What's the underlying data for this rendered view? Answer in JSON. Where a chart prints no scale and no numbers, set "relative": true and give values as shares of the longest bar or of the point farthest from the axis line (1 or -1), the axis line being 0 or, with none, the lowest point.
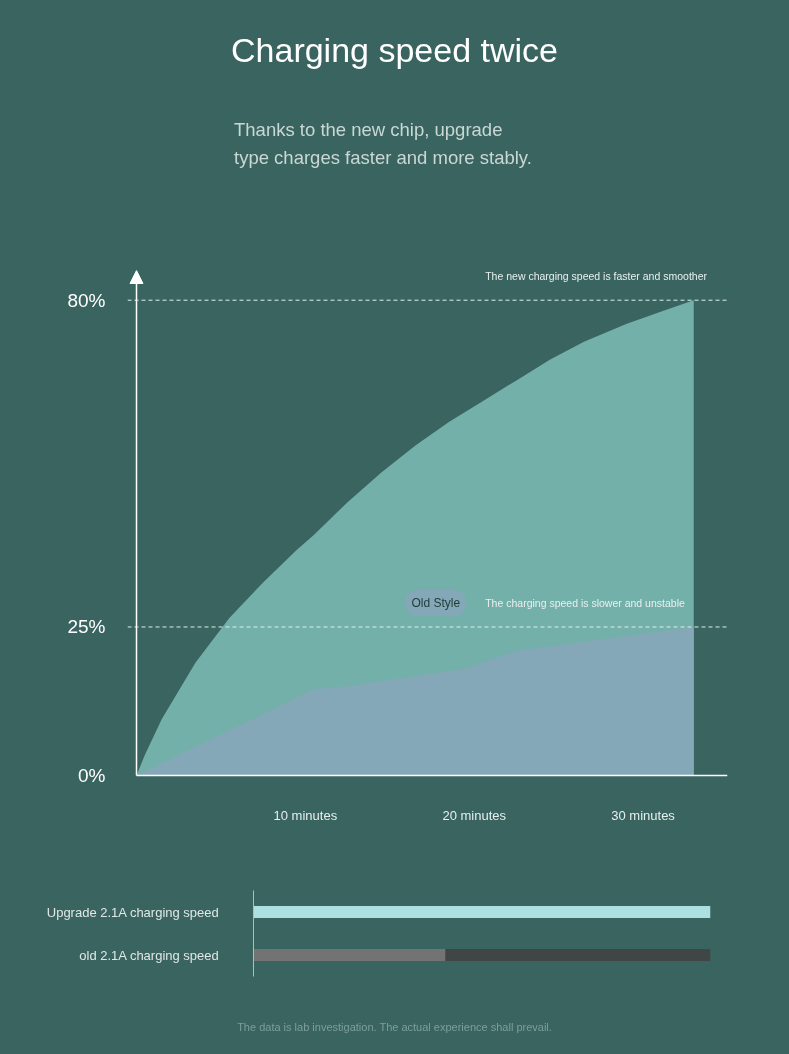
{
  "chart_data": [
    {
      "type": "area",
      "title": "Charging speed twice",
      "subtitle": "Thanks to the new chip, upgrade\ntype charges faster and more stably.",
      "xlim": [
        0,
        35
      ],
      "xticks": [
        {
          "value": 10,
          "label": "10 minutes"
        },
        {
          "value": 20,
          "label": "20 minutes"
        },
        {
          "value": 30,
          "label": "30 minutes"
        }
      ],
      "ylim": [
        0,
        85
      ],
      "yticks": [
        {
          "value": 0,
          "label": "0%"
        },
        {
          "value": 25,
          "label": "25%"
        },
        {
          "value": 80,
          "label": "80%"
        }
      ],
      "series": [
        {
          "color": "#74b0aa",
          "x": [
            0,
            0.5,
            1.5,
            3.5,
            5.5,
            7.5,
            9.5,
            10.5,
            12.5,
            14.5,
            16.5,
            18.5,
            20.5,
            22.5,
            24.5,
            26.5,
            29,
            31,
            33
          ],
          "values": [
            0,
            3.5,
            9.5,
            19,
            26.5,
            32.5,
            38,
            40.5,
            46,
            51,
            55.5,
            59.5,
            63,
            66.5,
            70,
            73,
            76,
            78,
            80
          ]
        },
        {
          "name": "Old Style",
          "color": "#84a8b8",
          "x": [
            0,
            10.5,
            12.5,
            16,
            19.5,
            22.5,
            33
          ],
          "values": [
            0,
            14.5,
            15,
            16.5,
            18,
            21,
            25
          ]
        }
      ],
      "ref_lines": [
        {
          "axis": "y",
          "value": 80,
          "label": "The new charging speed is faster and smoother",
          "color": "#dfeeec",
          "line_style": "dashed"
        },
        {
          "axis": "y",
          "value": 25,
          "label": "The charging speed is slower and unstable",
          "color": "#dfeeec",
          "line_style": "dashed"
        }
      ]
    },
    {
      "type": "bar",
      "orientation": "horizontal",
      "relative": true,
      "stacked": true,
      "categories": [
        "Upgrade 2.1A charging speed",
        "old 2.1A charging speed"
      ],
      "series": [
        {
          "colors": [
            "#ade0e0",
            "#737373"
          ],
          "values": [
            1,
            0.42
          ]
        },
        {
          "color": "#404545",
          "values": [
            null,
            0.58
          ]
        }
      ],
      "annotations": [
        "The data is lab investigation. The actual experience shall prevail."
      ]
    }
  ]
}
